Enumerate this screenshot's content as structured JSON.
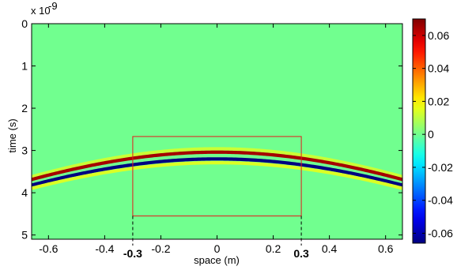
{
  "chart_data": {
    "type": "heatmap",
    "title": "",
    "xlabel": "space (m)",
    "ylabel": "time (s)",
    "xlim": [
      -0.66,
      0.66
    ],
    "ylim": [
      0,
      5.1
    ],
    "y_axis_direction": "downward",
    "y_exponent_label": "x 10",
    "y_exponent_power": "-9",
    "x_ticks": [
      -0.6,
      -0.4,
      -0.2,
      0,
      0.2,
      0.4,
      0.6
    ],
    "x_tick_labels": [
      "-0.6",
      "-0.4",
      "-0.2",
      "0",
      "0.2",
      "0.4",
      "0.6"
    ],
    "y_ticks": [
      0,
      1,
      2,
      3,
      4,
      5
    ],
    "y_tick_labels": [
      "0",
      "1",
      "2",
      "3",
      "4",
      "5"
    ],
    "colormap": "jet",
    "colorbar": {
      "min": -0.066,
      "max": 0.07,
      "ticks": [
        0.06,
        0.04,
        0.02,
        0,
        -0.02,
        -0.04,
        -0.06
      ],
      "tick_labels": [
        "0.06",
        "0.04",
        "0.02",
        "0",
        "-0.02",
        "-0.04",
        "-0.06"
      ]
    },
    "background_value": 0,
    "hyperbola": {
      "apex_x": 0,
      "apex_time": 3.12,
      "description_units": "time in 1e-9 s, x in m",
      "wave_speed": 0.2,
      "bands": [
        {
          "offset": -0.16,
          "value": 0.012
        },
        {
          "offset": -0.08,
          "value": 0.065
        },
        {
          "offset": 0.08,
          "value": -0.066
        },
        {
          "offset": 0.17,
          "value": 0.014
        }
      ]
    },
    "annotations": {
      "box": {
        "x_min": -0.3,
        "x_max": 0.3,
        "t_min": 2.67,
        "t_max": 4.55,
        "color": "#e41a1c"
      },
      "markers": [
        {
          "x": -0.3,
          "label": "-0.3"
        },
        {
          "x": 0.3,
          "label": "0.3"
        }
      ]
    }
  }
}
